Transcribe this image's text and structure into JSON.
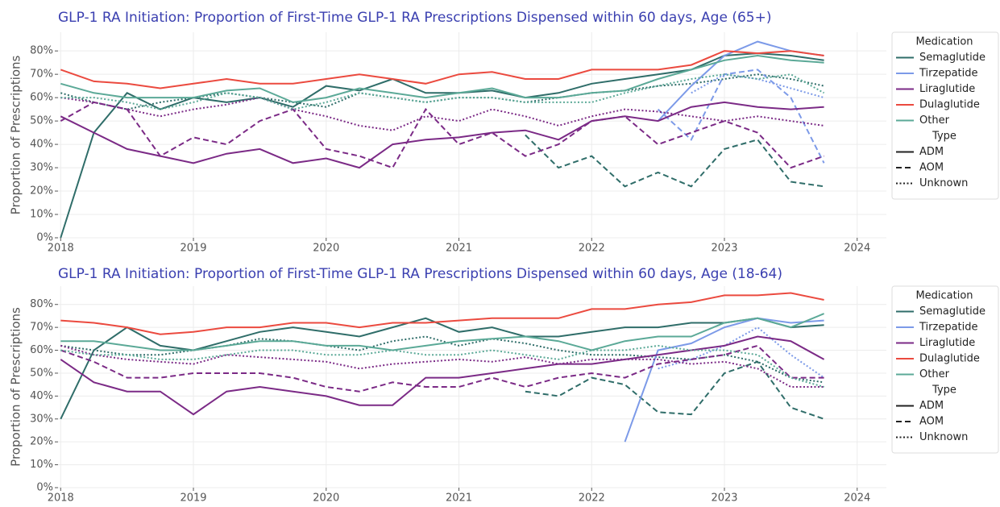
{
  "chart_data": [
    {
      "type": "line",
      "title": "GLP-1 RA Initiation: Proportion of First-Time GLP-1 RA Prescriptions Dispensed within 60 days, Age (65+)",
      "y_label": "Proportion of Prescriptions",
      "x": [
        2018,
        2018.25,
        2018.5,
        2018.75,
        2019,
        2019.25,
        2019.5,
        2019.75,
        2020,
        2020.25,
        2020.5,
        2020.75,
        2021,
        2021.25,
        2021.5,
        2021.75,
        2022,
        2022.25,
        2022.5,
        2022.75,
        2023,
        2023.25,
        2023.5,
        2023.75
      ],
      "xlim": [
        2017.98,
        2024.22
      ],
      "xticks": [
        2018,
        2019,
        2020,
        2021,
        2022,
        2023,
        2024
      ],
      "ylim": [
        0,
        88
      ],
      "yticks": [
        {
          "value": 0,
          "label": "0%"
        },
        {
          "value": 10,
          "label": "10%"
        },
        {
          "value": 20,
          "label": "20%"
        },
        {
          "value": 30,
          "label": "30%"
        },
        {
          "value": 40,
          "label": "40%"
        },
        {
          "value": 50,
          "label": "50%"
        },
        {
          "value": 60,
          "label": "60%"
        },
        {
          "value": 70,
          "label": "70%"
        },
        {
          "value": 80,
          "label": "80%"
        }
      ],
      "grid": true,
      "legend": {
        "corner": "outside-right",
        "medication_title": "Medication",
        "type_title": "Type",
        "medications": [
          {
            "name": "Semaglutide",
            "color": "#2f6d69"
          },
          {
            "name": "Tirzepatide",
            "color": "#7c9ae8"
          },
          {
            "name": "Liraglutide",
            "color": "#7b2a86"
          },
          {
            "name": "Dulaglutide",
            "color": "#eb4a3f"
          },
          {
            "name": "Other",
            "color": "#5ba997"
          }
        ],
        "types": [
          {
            "name": "ADM",
            "dash": "solid"
          },
          {
            "name": "AOM",
            "dash": "dashed"
          },
          {
            "name": "Unknown",
            "dash": "dotted"
          }
        ]
      },
      "series": [
        {
          "medication": "Semaglutide",
          "line_type": "ADM",
          "values": [
            0,
            45,
            62,
            55,
            60,
            58,
            60,
            56,
            65,
            63,
            68,
            62,
            62,
            63,
            60,
            62,
            66,
            68,
            70,
            72,
            78,
            79,
            78,
            76
          ]
        },
        {
          "medication": "Semaglutide",
          "line_type": "AOM",
          "values": [
            null,
            null,
            null,
            null,
            null,
            null,
            null,
            null,
            null,
            null,
            null,
            null,
            null,
            null,
            44,
            30,
            35,
            22,
            28,
            22,
            38,
            42,
            24,
            22
          ]
        },
        {
          "medication": "Semaglutide",
          "line_type": "Unknown",
          "values": [
            62,
            58,
            55,
            58,
            60,
            62,
            60,
            58,
            56,
            62,
            60,
            58,
            60,
            60,
            58,
            60,
            62,
            63,
            65,
            66,
            68,
            70,
            68,
            65
          ]
        },
        {
          "medication": "Tirzepatide",
          "line_type": "ADM",
          "values": [
            null,
            null,
            null,
            null,
            null,
            null,
            null,
            null,
            null,
            null,
            null,
            null,
            null,
            null,
            null,
            null,
            null,
            null,
            50,
            65,
            78,
            84,
            80,
            78
          ]
        },
        {
          "medication": "Tirzepatide",
          "line_type": "AOM",
          "values": [
            null,
            null,
            null,
            null,
            null,
            null,
            null,
            null,
            null,
            null,
            null,
            null,
            null,
            null,
            null,
            null,
            null,
            null,
            55,
            42,
            70,
            72,
            60,
            32
          ]
        },
        {
          "medication": "Tirzepatide",
          "line_type": "Unknown",
          "values": [
            null,
            null,
            null,
            null,
            null,
            null,
            null,
            null,
            null,
            null,
            null,
            null,
            null,
            null,
            null,
            null,
            null,
            null,
            null,
            62,
            70,
            68,
            64,
            60
          ]
        },
        {
          "medication": "Liraglutide",
          "line_type": "ADM",
          "values": [
            52,
            45,
            38,
            35,
            32,
            36,
            38,
            32,
            34,
            30,
            40,
            42,
            43,
            45,
            46,
            42,
            50,
            52,
            50,
            56,
            58,
            56,
            55,
            56
          ]
        },
        {
          "medication": "Liraglutide",
          "line_type": "AOM",
          "values": [
            50,
            58,
            55,
            35,
            43,
            40,
            50,
            55,
            38,
            35,
            30,
            55,
            40,
            45,
            35,
            40,
            50,
            52,
            40,
            45,
            50,
            45,
            30,
            35
          ]
        },
        {
          "medication": "Liraglutide",
          "line_type": "Unknown",
          "values": [
            60,
            58,
            55,
            52,
            55,
            57,
            60,
            55,
            52,
            48,
            46,
            52,
            50,
            55,
            52,
            48,
            52,
            55,
            54,
            52,
            50,
            52,
            50,
            48
          ]
        },
        {
          "medication": "Dulaglutide",
          "line_type": "ADM",
          "values": [
            72,
            67,
            66,
            64,
            66,
            68,
            66,
            66,
            68,
            70,
            68,
            66,
            70,
            71,
            68,
            68,
            72,
            72,
            72,
            74,
            80,
            79,
            80,
            78
          ]
        },
        {
          "medication": "Other",
          "line_type": "ADM",
          "values": [
            66,
            62,
            60,
            60,
            60,
            63,
            64,
            58,
            60,
            64,
            62,
            60,
            62,
            64,
            60,
            60,
            62,
            63,
            68,
            72,
            76,
            78,
            76,
            75
          ]
        },
        {
          "medication": "Other",
          "line_type": "Unknown",
          "values": [
            60,
            60,
            58,
            55,
            58,
            62,
            60,
            55,
            58,
            62,
            60,
            58,
            60,
            60,
            58,
            58,
            58,
            62,
            65,
            68,
            70,
            68,
            70,
            62
          ]
        }
      ]
    },
    {
      "type": "line",
      "title": "GLP-1 RA Initiation: Proportion of First-Time GLP-1 RA Prescriptions Dispensed within 60 days, Age (18-64)",
      "y_label": "Proportion of Prescriptions",
      "x": [
        2018,
        2018.25,
        2018.5,
        2018.75,
        2019,
        2019.25,
        2019.5,
        2019.75,
        2020,
        2020.25,
        2020.5,
        2020.75,
        2021,
        2021.25,
        2021.5,
        2021.75,
        2022,
        2022.25,
        2022.5,
        2022.75,
        2023,
        2023.25,
        2023.5,
        2023.75
      ],
      "xlim": [
        2017.98,
        2024.22
      ],
      "xticks": [
        2018,
        2019,
        2020,
        2021,
        2022,
        2023,
        2024
      ],
      "ylim": [
        0,
        88
      ],
      "yticks": [
        {
          "value": 0,
          "label": "0%"
        },
        {
          "value": 10,
          "label": "10%"
        },
        {
          "value": 20,
          "label": "20%"
        },
        {
          "value": 30,
          "label": "30%"
        },
        {
          "value": 40,
          "label": "40%"
        },
        {
          "value": 50,
          "label": "50%"
        },
        {
          "value": 60,
          "label": "60%"
        },
        {
          "value": 70,
          "label": "70%"
        },
        {
          "value": 80,
          "label": "80%"
        }
      ],
      "grid": true,
      "legend": {
        "corner": "outside-right",
        "medication_title": "Medication",
        "type_title": "Type",
        "medications": [
          {
            "name": "Semaglutide",
            "color": "#2f6d69"
          },
          {
            "name": "Tirzepatide",
            "color": "#7c9ae8"
          },
          {
            "name": "Liraglutide",
            "color": "#7b2a86"
          },
          {
            "name": "Dulaglutide",
            "color": "#eb4a3f"
          },
          {
            "name": "Other",
            "color": "#5ba997"
          }
        ],
        "types": [
          {
            "name": "ADM",
            "dash": "solid"
          },
          {
            "name": "AOM",
            "dash": "dashed"
          },
          {
            "name": "Unknown",
            "dash": "dotted"
          }
        ]
      },
      "series": [
        {
          "medication": "Semaglutide",
          "line_type": "ADM",
          "values": [
            30,
            60,
            70,
            62,
            60,
            64,
            68,
            70,
            68,
            66,
            70,
            74,
            68,
            70,
            66,
            66,
            68,
            70,
            70,
            72,
            72,
            74,
            70,
            71
          ]
        },
        {
          "medication": "Semaglutide",
          "line_type": "AOM",
          "values": [
            null,
            null,
            null,
            null,
            null,
            null,
            null,
            null,
            null,
            null,
            null,
            null,
            null,
            null,
            42,
            40,
            48,
            45,
            33,
            32,
            50,
            55,
            35,
            30
          ]
        },
        {
          "medication": "Semaglutide",
          "line_type": "Unknown",
          "values": [
            62,
            60,
            58,
            58,
            60,
            62,
            65,
            64,
            62,
            60,
            64,
            66,
            62,
            65,
            63,
            60,
            58,
            58,
            57,
            56,
            58,
            55,
            48,
            46
          ]
        },
        {
          "medication": "Tirzepatide",
          "line_type": "ADM",
          "values": [
            null,
            null,
            null,
            null,
            null,
            null,
            null,
            null,
            null,
            null,
            null,
            null,
            null,
            null,
            null,
            null,
            null,
            20,
            60,
            63,
            70,
            74,
            72,
            73
          ]
        },
        {
          "medication": "Tirzepatide",
          "line_type": "Unknown",
          "values": [
            null,
            null,
            null,
            null,
            null,
            null,
            null,
            null,
            null,
            null,
            null,
            null,
            null,
            null,
            null,
            null,
            null,
            null,
            52,
            56,
            62,
            70,
            58,
            48
          ]
        },
        {
          "medication": "Liraglutide",
          "line_type": "ADM",
          "values": [
            56,
            46,
            42,
            42,
            32,
            42,
            44,
            42,
            40,
            36,
            36,
            48,
            48,
            50,
            52,
            54,
            54,
            56,
            58,
            60,
            62,
            66,
            64,
            56
          ]
        },
        {
          "medication": "Liraglutide",
          "line_type": "AOM",
          "values": [
            60,
            55,
            48,
            48,
            50,
            50,
            50,
            48,
            44,
            42,
            46,
            44,
            44,
            48,
            44,
            48,
            50,
            48,
            54,
            56,
            58,
            62,
            48,
            48
          ]
        },
        {
          "medication": "Liraglutide",
          "line_type": "Unknown",
          "values": [
            62,
            58,
            56,
            55,
            54,
            58,
            57,
            56,
            55,
            52,
            54,
            55,
            56,
            55,
            57,
            54,
            56,
            56,
            56,
            54,
            55,
            52,
            44,
            44
          ]
        },
        {
          "medication": "Dulaglutide",
          "line_type": "ADM",
          "values": [
            73,
            72,
            70,
            67,
            68,
            70,
            70,
            72,
            72,
            70,
            72,
            72,
            73,
            74,
            74,
            74,
            78,
            78,
            80,
            81,
            84,
            84,
            85,
            82
          ]
        },
        {
          "medication": "Other",
          "line_type": "ADM",
          "values": [
            64,
            64,
            62,
            60,
            60,
            62,
            64,
            64,
            62,
            62,
            60,
            62,
            64,
            65,
            66,
            64,
            60,
            64,
            66,
            66,
            72,
            74,
            70,
            76
          ]
        },
        {
          "medication": "Other",
          "line_type": "Unknown",
          "values": [
            60,
            58,
            58,
            56,
            56,
            58,
            60,
            60,
            58,
            58,
            60,
            58,
            58,
            60,
            58,
            56,
            60,
            60,
            62,
            60,
            60,
            58,
            48,
            44
          ]
        }
      ]
    }
  ]
}
